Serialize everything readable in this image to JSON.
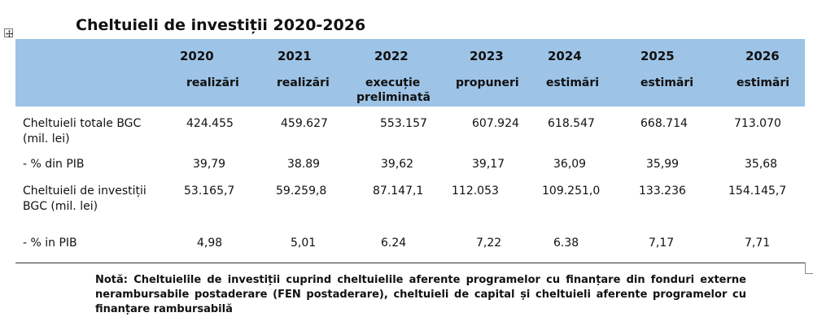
{
  "title": "Cheltuieli de investiții 2020-2026",
  "columns": [
    {
      "year": "2020",
      "sub": [
        "realizări"
      ]
    },
    {
      "year": "2021",
      "sub": [
        "realizări"
      ]
    },
    {
      "year": "2022",
      "sub": [
        "execuție",
        "preliminată"
      ]
    },
    {
      "year": "2023",
      "sub": [
        "propuneri"
      ]
    },
    {
      "year": "2024",
      "sub": [
        "estimări"
      ]
    },
    {
      "year": "2025",
      "sub": [
        "estimări"
      ]
    },
    {
      "year": "2026",
      "sub": [
        "estimări"
      ]
    }
  ],
  "rows": [
    {
      "label": [
        "Cheltuieli totale BGC",
        "(mil. lei)"
      ],
      "values": [
        "424.455",
        "459.627",
        "553.157",
        "607.924",
        "618.547",
        "668.714",
        "713.070"
      ]
    },
    {
      "label": [
        "- % din PIB"
      ],
      "values": [
        "39,79",
        "38.89",
        "39,62",
        "39,17",
        "36,09",
        "35,99",
        "35,68"
      ]
    },
    {
      "label": [
        "Cheltuieli de investiții",
        "BGC (mil. lei)"
      ],
      "values": [
        "53.165,7",
        "59.259,8",
        "87.147,1",
        "112.053",
        "109.251,0",
        "133.236",
        "154.145,7"
      ]
    },
    {
      "label": [
        "- % in PIB"
      ],
      "values": [
        "4,98",
        "5,01",
        "6.24",
        "7,22",
        "6.38",
        "7,17",
        "7,71"
      ]
    }
  ],
  "note": "Notă: Cheltuielile de investiții cuprind cheltuielile aferente programelor cu finanțare din fonduri externe nerambursabile postaderare (FEN postaderare), cheltuieli de capital și cheltuieli aferente programelor cu finanțare rambursabilă",
  "icons": {
    "table_anchor": "move-cross-icon"
  }
}
